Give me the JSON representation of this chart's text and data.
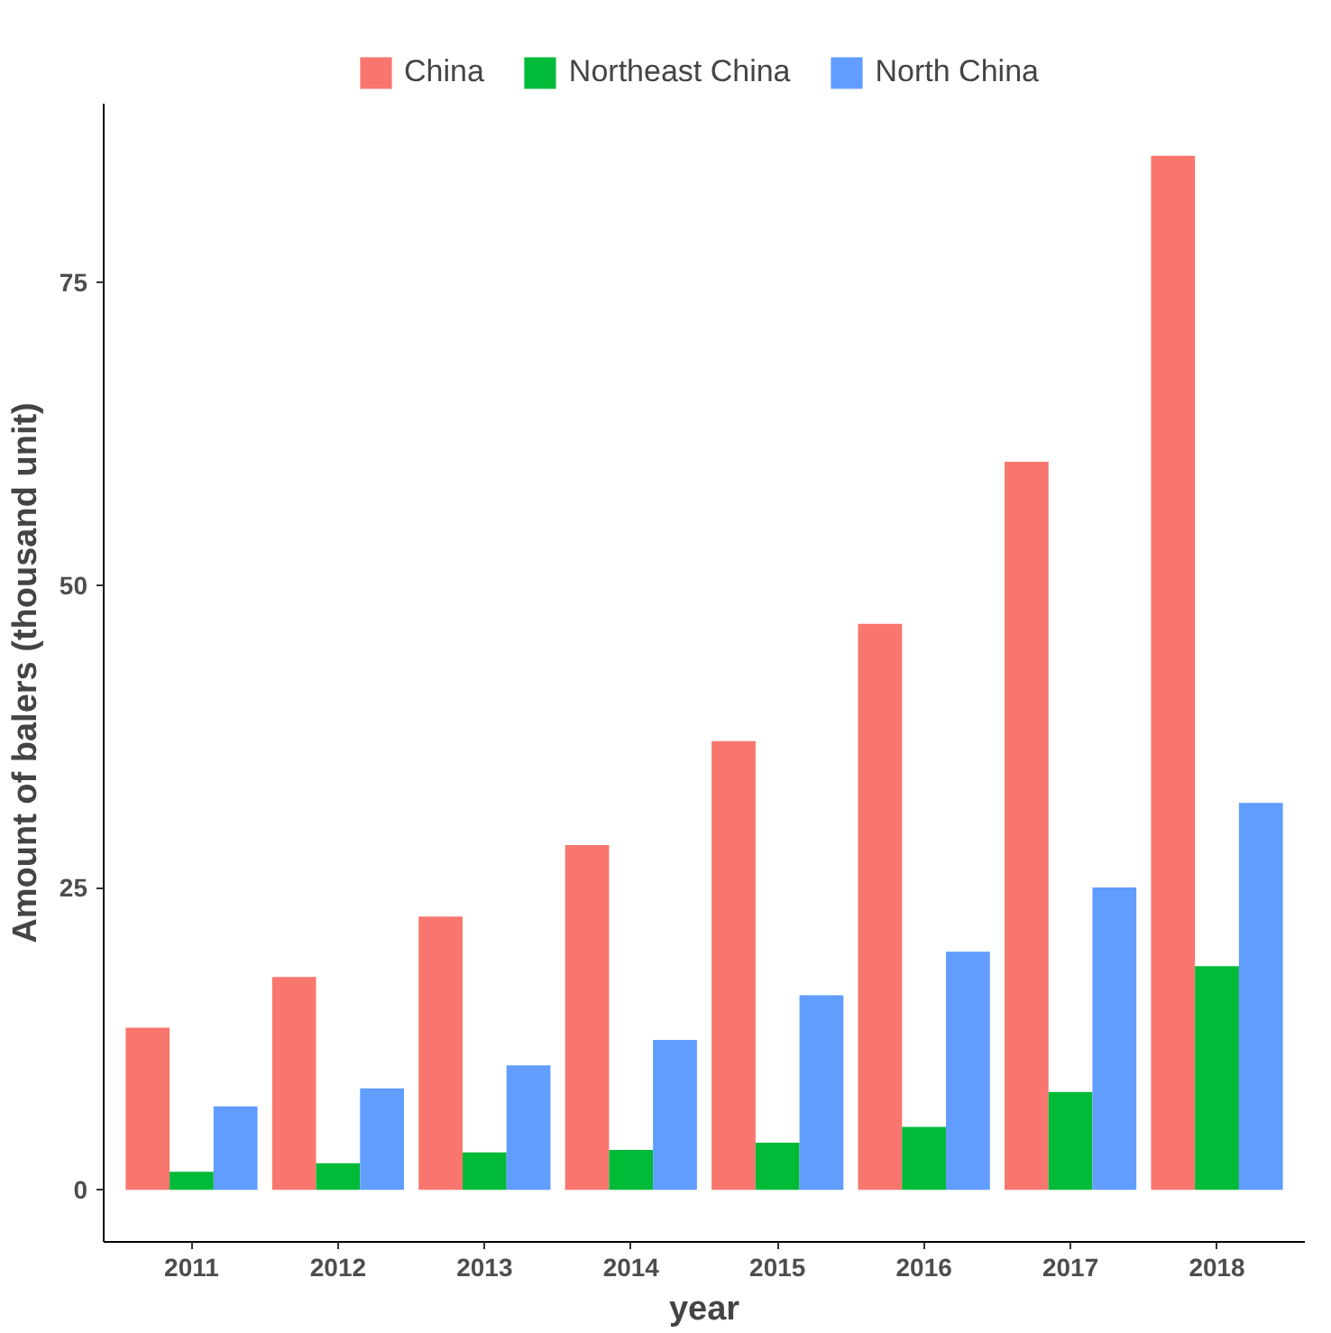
{
  "chart_data": {
    "type": "bar",
    "xlabel": "year",
    "ylabel": "Amount of balers (thousand unit)",
    "categories": [
      "2011",
      "2012",
      "2013",
      "2014",
      "2015",
      "2016",
      "2017",
      "2018"
    ],
    "series": [
      {
        "name": "China",
        "color": "#f8766d",
        "values": [
          13.4,
          17.6,
          22.6,
          28.5,
          37.1,
          46.8,
          60.2,
          85.5
        ]
      },
      {
        "name": "Northeast China",
        "color": "#00ba38",
        "values": [
          1.5,
          2.2,
          3.1,
          3.3,
          3.9,
          5.2,
          8.1,
          18.5
        ]
      },
      {
        "name": "North China",
        "color": "#619cff",
        "values": [
          6.9,
          8.4,
          10.3,
          12.4,
          16.1,
          19.7,
          25.0,
          32.0
        ]
      }
    ],
    "ylim": [
      -4.3,
      89.8
    ],
    "yticks": [
      0,
      25,
      50,
      75
    ],
    "grid": false,
    "legend": "top"
  }
}
